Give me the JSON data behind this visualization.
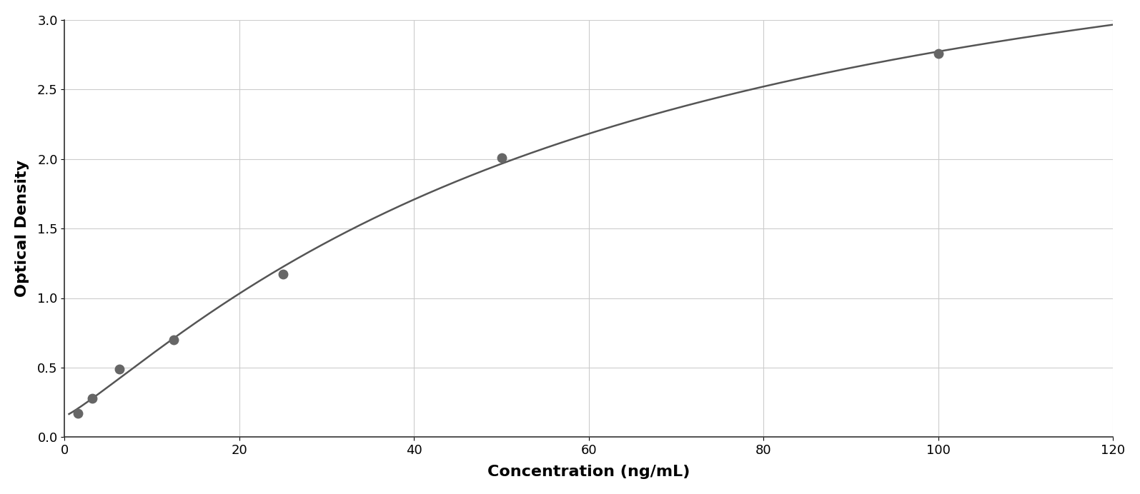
{
  "x_data": [
    1.56,
    3.13,
    6.25,
    12.5,
    25,
    50,
    100
  ],
  "y_data": [
    0.17,
    0.28,
    0.49,
    0.7,
    1.17,
    2.01,
    2.76
  ],
  "xlabel": "Concentration (ng/mL)",
  "ylabel": "Optical Density",
  "xlim": [
    0,
    120
  ],
  "ylim": [
    0,
    3.0
  ],
  "xticks": [
    0,
    20,
    40,
    60,
    80,
    100,
    120
  ],
  "yticks": [
    0,
    0.5,
    1.0,
    1.5,
    2.0,
    2.5,
    3.0
  ],
  "data_color": "#666666",
  "line_color": "#555555",
  "background_color": "#ffffff",
  "grid_color": "#cccccc",
  "marker_size": 9,
  "line_width": 1.8,
  "xlabel_fontsize": 16,
  "ylabel_fontsize": 16,
  "tick_fontsize": 13,
  "figure_width": 15.95,
  "figure_height": 6.92
}
